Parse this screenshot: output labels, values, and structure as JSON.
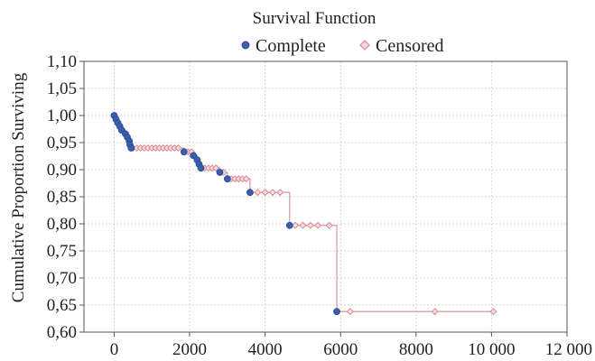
{
  "chart_data": {
    "type": "line",
    "title": "Survival Function",
    "xlabel": "",
    "ylabel": "Cumulative Proportion Surviving",
    "xlim": [
      -800,
      12000
    ],
    "ylim": [
      0.6,
      1.1
    ],
    "xticks": [
      0,
      2000,
      4000,
      6000,
      8000,
      10000,
      12000
    ],
    "xtick_labels": [
      "0",
      "2000",
      "4000",
      "6000",
      "8000",
      "10 000",
      "12 000"
    ],
    "yticks": [
      0.6,
      0.65,
      0.7,
      0.75,
      0.8,
      0.85,
      0.9,
      0.95,
      1.0,
      1.05,
      1.1
    ],
    "ytick_labels": [
      "0,60",
      "0,65",
      "0,70",
      "0,75",
      "0,80",
      "0,85",
      "0,90",
      "0,95",
      "1,00",
      "1,05",
      "1,10"
    ],
    "grid": true,
    "legend": {
      "placement": "top",
      "entries": [
        {
          "name": "Complete",
          "color": "#3a5fb0",
          "marker": "circle"
        },
        {
          "name": "Censored",
          "color": "#d98a8f",
          "marker": "diamond"
        }
      ]
    },
    "line_color": "#d7a0a8",
    "step_curve": [
      {
        "x": 0,
        "y": 1.0
      },
      {
        "x": 50,
        "y": 0.993
      },
      {
        "x": 100,
        "y": 0.986
      },
      {
        "x": 150,
        "y": 0.98
      },
      {
        "x": 200,
        "y": 0.973
      },
      {
        "x": 300,
        "y": 0.966
      },
      {
        "x": 350,
        "y": 0.96
      },
      {
        "x": 400,
        "y": 0.953
      },
      {
        "x": 420,
        "y": 0.946
      },
      {
        "x": 450,
        "y": 0.94
      },
      {
        "x": 1850,
        "y": 0.933
      },
      {
        "x": 2100,
        "y": 0.926
      },
      {
        "x": 2200,
        "y": 0.918
      },
      {
        "x": 2250,
        "y": 0.91
      },
      {
        "x": 2300,
        "y": 0.903
      },
      {
        "x": 2800,
        "y": 0.895
      },
      {
        "x": 3000,
        "y": 0.883
      },
      {
        "x": 3600,
        "y": 0.858
      },
      {
        "x": 4650,
        "y": 0.797
      },
      {
        "x": 5900,
        "y": 0.638
      },
      {
        "x": 10050,
        "y": 0.638
      }
    ],
    "complete_points": [
      {
        "x": 0,
        "y": 1.0
      },
      {
        "x": 50,
        "y": 0.993
      },
      {
        "x": 100,
        "y": 0.986
      },
      {
        "x": 150,
        "y": 0.98
      },
      {
        "x": 200,
        "y": 0.973
      },
      {
        "x": 300,
        "y": 0.966
      },
      {
        "x": 350,
        "y": 0.96
      },
      {
        "x": 400,
        "y": 0.953
      },
      {
        "x": 420,
        "y": 0.946
      },
      {
        "x": 450,
        "y": 0.94
      },
      {
        "x": 1850,
        "y": 0.933
      },
      {
        "x": 2100,
        "y": 0.926
      },
      {
        "x": 2200,
        "y": 0.918
      },
      {
        "x": 2250,
        "y": 0.91
      },
      {
        "x": 2300,
        "y": 0.903
      },
      {
        "x": 2800,
        "y": 0.895
      },
      {
        "x": 3000,
        "y": 0.883
      },
      {
        "x": 3600,
        "y": 0.858
      },
      {
        "x": 4650,
        "y": 0.797
      },
      {
        "x": 5900,
        "y": 0.638
      }
    ],
    "censored_points": [
      {
        "x": 500,
        "y": 0.94
      },
      {
        "x": 600,
        "y": 0.94
      },
      {
        "x": 700,
        "y": 0.94
      },
      {
        "x": 800,
        "y": 0.94
      },
      {
        "x": 900,
        "y": 0.94
      },
      {
        "x": 1000,
        "y": 0.94
      },
      {
        "x": 1100,
        "y": 0.94
      },
      {
        "x": 1200,
        "y": 0.94
      },
      {
        "x": 1300,
        "y": 0.94
      },
      {
        "x": 1400,
        "y": 0.94
      },
      {
        "x": 1500,
        "y": 0.94
      },
      {
        "x": 1600,
        "y": 0.94
      },
      {
        "x": 1700,
        "y": 0.94
      },
      {
        "x": 1950,
        "y": 0.933
      },
      {
        "x": 2050,
        "y": 0.933
      },
      {
        "x": 2400,
        "y": 0.903
      },
      {
        "x": 2500,
        "y": 0.903
      },
      {
        "x": 2600,
        "y": 0.903
      },
      {
        "x": 2700,
        "y": 0.903
      },
      {
        "x": 2900,
        "y": 0.895
      },
      {
        "x": 3100,
        "y": 0.883
      },
      {
        "x": 3200,
        "y": 0.883
      },
      {
        "x": 3300,
        "y": 0.883
      },
      {
        "x": 3400,
        "y": 0.883
      },
      {
        "x": 3500,
        "y": 0.883
      },
      {
        "x": 3800,
        "y": 0.858
      },
      {
        "x": 4000,
        "y": 0.858
      },
      {
        "x": 4200,
        "y": 0.858
      },
      {
        "x": 4400,
        "y": 0.858
      },
      {
        "x": 4800,
        "y": 0.797
      },
      {
        "x": 5000,
        "y": 0.797
      },
      {
        "x": 5200,
        "y": 0.797
      },
      {
        "x": 5400,
        "y": 0.797
      },
      {
        "x": 5700,
        "y": 0.797
      },
      {
        "x": 6250,
        "y": 0.638
      },
      {
        "x": 8500,
        "y": 0.638
      },
      {
        "x": 10050,
        "y": 0.638
      }
    ]
  }
}
